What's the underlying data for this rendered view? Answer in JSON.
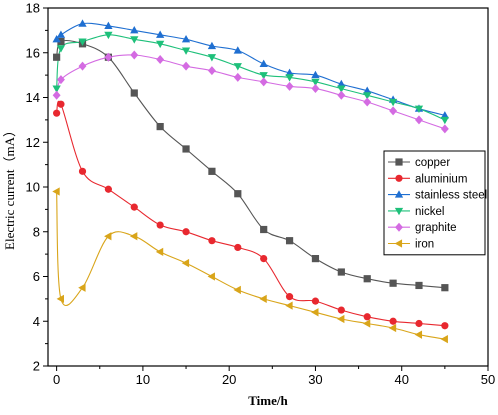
{
  "chart_data": {
    "type": "line",
    "title": "",
    "xlabel": "Time/h",
    "ylabel": "Electric current（mA）",
    "xlim": [
      -1,
      50
    ],
    "ylim": [
      2,
      18
    ],
    "xticks": [
      0,
      10,
      20,
      30,
      40,
      50
    ],
    "yticks": [
      2,
      4,
      6,
      8,
      10,
      12,
      14,
      16,
      18
    ],
    "grid": false,
    "legend_position": "right",
    "series": [
      {
        "name": "copper",
        "color": "#555555",
        "marker": "square",
        "x": [
          0,
          0.5,
          3,
          6,
          9,
          12,
          15,
          18,
          21,
          24,
          27,
          30,
          33,
          36,
          39,
          42,
          45
        ],
        "y": [
          15.8,
          16.5,
          16.4,
          15.8,
          14.2,
          12.7,
          11.7,
          10.7,
          9.7,
          8.1,
          7.6,
          6.8,
          6.2,
          5.9,
          5.7,
          5.6,
          5.5
        ]
      },
      {
        "name": "aluminium",
        "color": "#e8282f",
        "marker": "circle",
        "x": [
          0,
          0.5,
          3,
          6,
          9,
          12,
          15,
          18,
          21,
          24,
          27,
          30,
          33,
          36,
          39,
          42,
          45
        ],
        "y": [
          13.3,
          13.7,
          10.7,
          9.9,
          9.1,
          8.3,
          8.0,
          7.6,
          7.3,
          6.8,
          5.1,
          4.9,
          4.5,
          4.2,
          4.0,
          3.9,
          3.8
        ]
      },
      {
        "name": "stainless steel",
        "color": "#1f6fd1",
        "marker": "triangle-up",
        "x": [
          0,
          0.5,
          3,
          6,
          9,
          12,
          15,
          18,
          21,
          24,
          27,
          30,
          33,
          36,
          39,
          42,
          45
        ],
        "y": [
          16.6,
          16.8,
          17.3,
          17.2,
          17.0,
          16.8,
          16.6,
          16.3,
          16.1,
          15.5,
          15.1,
          15.0,
          14.6,
          14.3,
          13.9,
          13.5,
          13.2
        ]
      },
      {
        "name": "nickel",
        "color": "#1ec07a",
        "marker": "triangle-down",
        "x": [
          0,
          0.5,
          3,
          6,
          9,
          12,
          15,
          18,
          21,
          24,
          27,
          30,
          33,
          36,
          39,
          42,
          45
        ],
        "y": [
          14.4,
          16.2,
          16.5,
          16.8,
          16.6,
          16.4,
          16.1,
          15.8,
          15.4,
          15.0,
          14.9,
          14.7,
          14.4,
          14.1,
          13.8,
          13.5,
          13.0
        ]
      },
      {
        "name": "graphite",
        "color": "#d46be2",
        "marker": "diamond",
        "x": [
          0,
          0.5,
          3,
          6,
          9,
          12,
          15,
          18,
          21,
          24,
          27,
          30,
          33,
          36,
          39,
          42,
          45
        ],
        "y": [
          14.1,
          14.8,
          15.4,
          15.8,
          15.9,
          15.7,
          15.4,
          15.2,
          14.9,
          14.7,
          14.5,
          14.4,
          14.1,
          13.8,
          13.4,
          13.0,
          12.6
        ]
      },
      {
        "name": "iron",
        "color": "#d9a51a",
        "marker": "triangle-left",
        "x": [
          0,
          0.5,
          3,
          6,
          9,
          12,
          15,
          18,
          21,
          24,
          27,
          30,
          33,
          36,
          39,
          42,
          45
        ],
        "y": [
          9.8,
          5.0,
          5.5,
          7.8,
          7.8,
          7.1,
          6.6,
          6.0,
          5.4,
          5.0,
          4.7,
          4.4,
          4.1,
          3.9,
          3.7,
          3.4,
          3.2
        ]
      }
    ]
  }
}
